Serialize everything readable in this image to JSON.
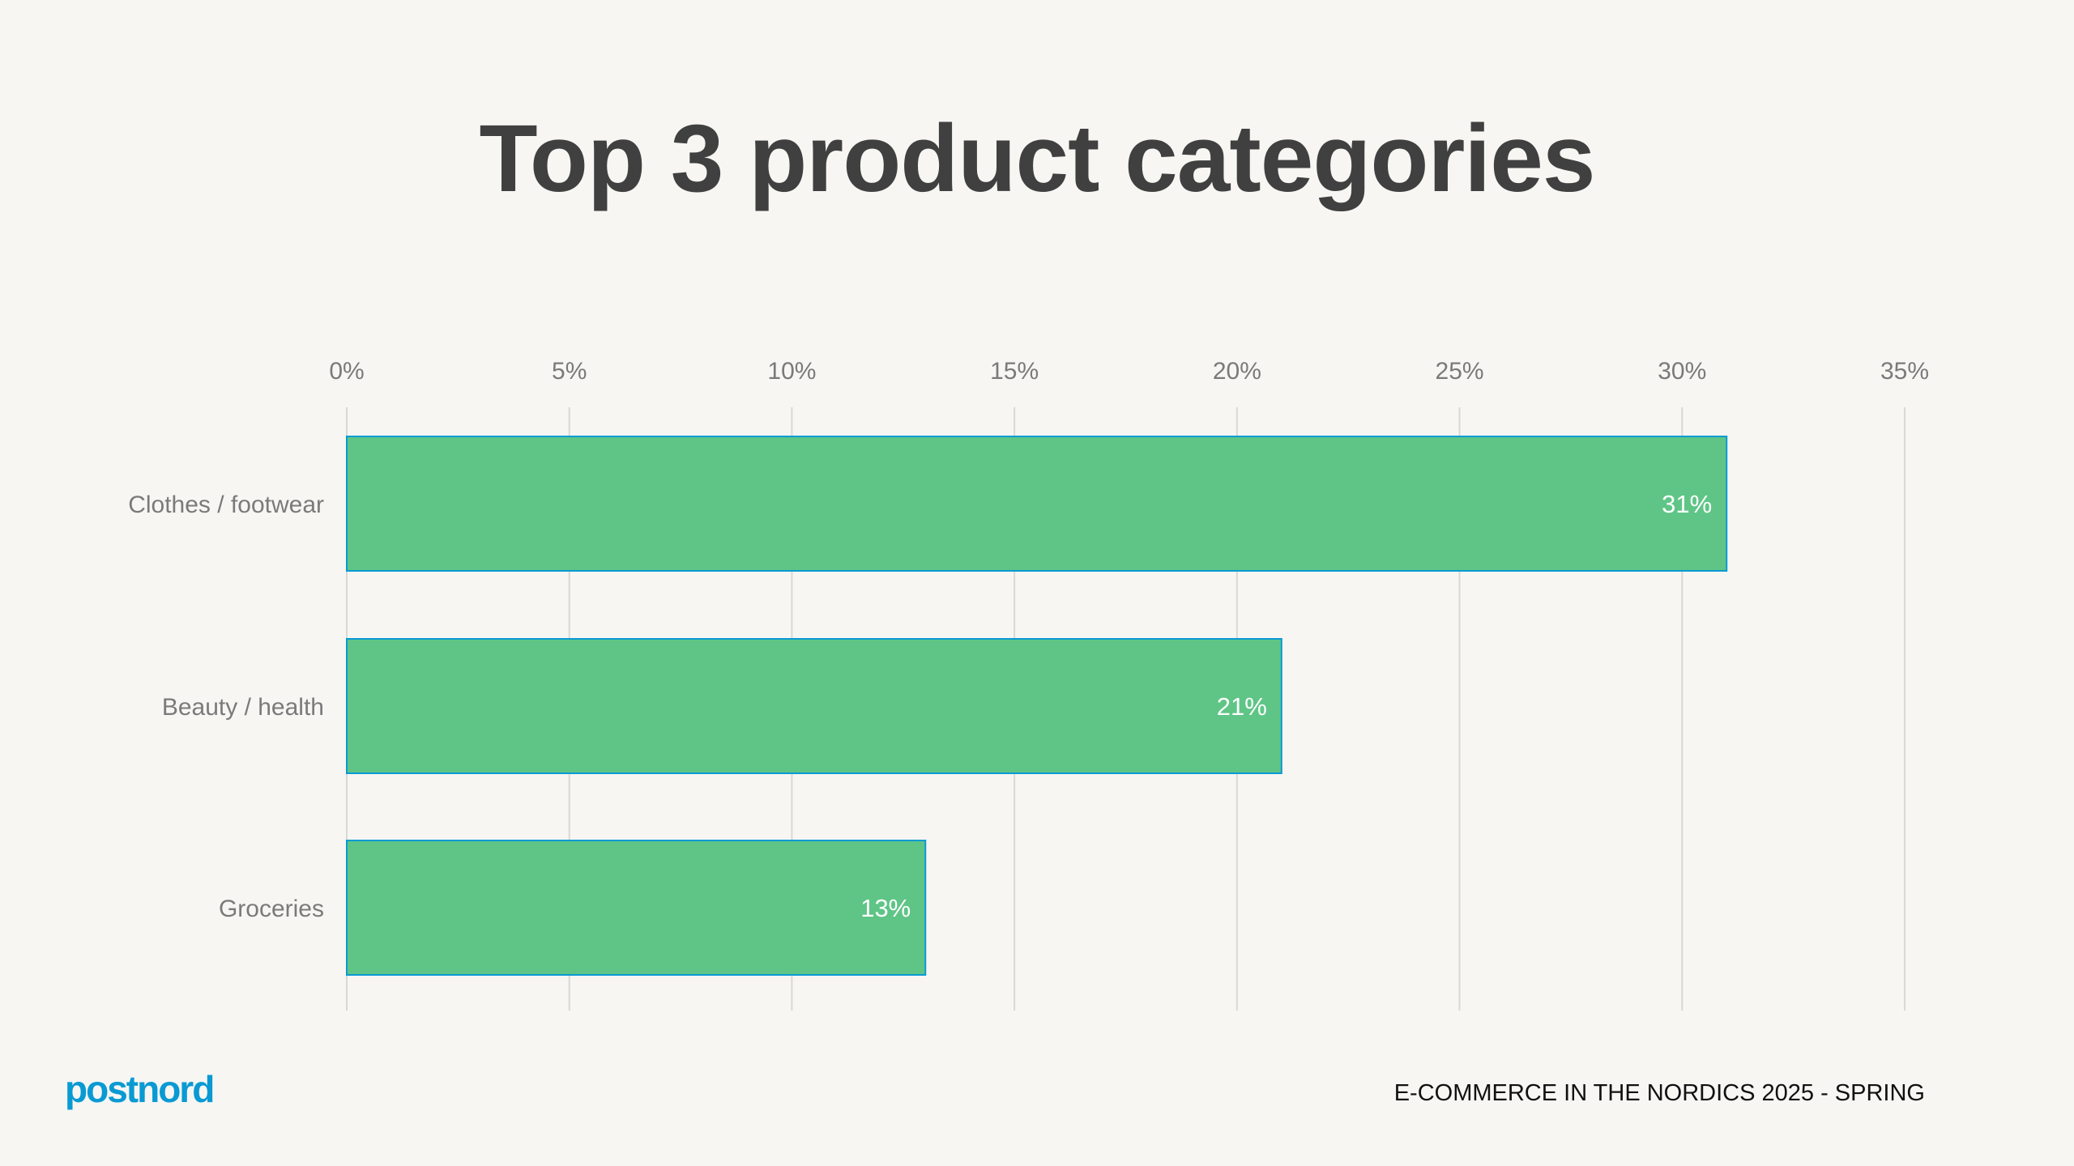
{
  "title": "Top 3 product categories",
  "footer": "E-COMMERCE IN THE NORDICS 2025 - SPRING",
  "logo": "postnord",
  "colors": {
    "bar": "#5fc586",
    "bar_border": "#0a9ad3",
    "logo": "#0a9ad3",
    "title": "#404040",
    "axis_text": "#7a7a7a"
  },
  "chart_data": {
    "type": "bar",
    "orientation": "horizontal",
    "categories": [
      "Clothes / footwear",
      "Beauty / health",
      "Groceries"
    ],
    "values": [
      31,
      21,
      13
    ],
    "data_labels": [
      "31%",
      "21%",
      "13%"
    ],
    "xlim": [
      0,
      35
    ],
    "x_ticks": [
      0,
      5,
      10,
      15,
      20,
      25,
      30,
      35
    ],
    "x_tick_labels": [
      "0%",
      "5%",
      "10%",
      "15%",
      "20%",
      "25%",
      "30%",
      "35%"
    ],
    "x_axis_position": "top",
    "grid": true
  }
}
